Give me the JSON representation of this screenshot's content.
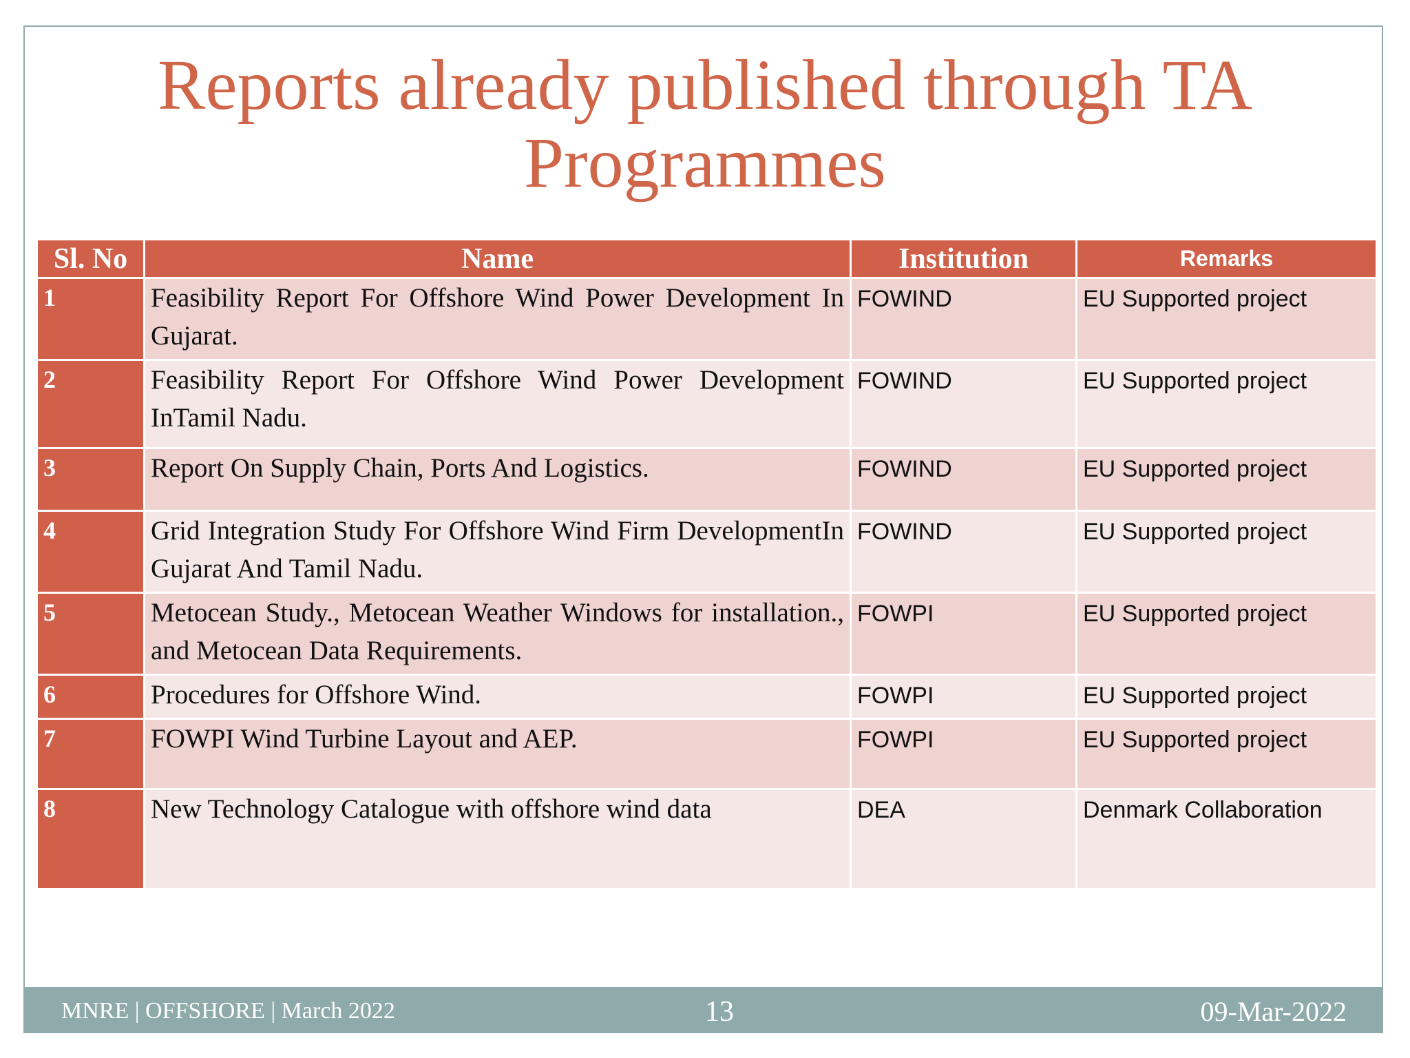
{
  "title": {
    "line1": "Reports already published through TA",
    "line2": "Programmes"
  },
  "table": {
    "headers": [
      "Sl. No",
      "Name",
      "Institution",
      "Remarks"
    ],
    "rows": [
      [
        "1",
        "Feasibility Report For Offshore Wind Power Development In Gujarat.",
        "FOWIND",
        "EU Supported project"
      ],
      [
        "2",
        "Feasibility Report For Offshore Wind Power Development InTamil Nadu.",
        "FOWIND",
        "EU Supported project"
      ],
      [
        "3",
        "Report On Supply Chain, Ports And Logistics.",
        "FOWIND",
        "EU Supported project"
      ],
      [
        "4",
        "Grid Integration Study For Offshore Wind Firm DevelopmentIn Gujarat And Tamil Nadu.",
        "FOWIND",
        "EU Supported project"
      ],
      [
        "5",
        "Metocean Study., Metocean Weather Windows for installation., and Metocean Data Requirements.",
        "FOWPI",
        "EU Supported project"
      ],
      [
        "6",
        "Procedures for Offshore Wind.",
        "FOWPI",
        "EU Supported project"
      ],
      [
        "7",
        "FOWPI Wind Turbine Layout and AEP.",
        "FOWPI",
        "EU Supported project"
      ],
      [
        "8",
        "New Technology Catalogue with offshore wind data",
        "DEA",
        "Denmark Collaboration"
      ]
    ]
  },
  "footer": {
    "left": "MNRE | OFFSHORE | March 2022",
    "center": "13",
    "right": "09-Mar-2022"
  }
}
